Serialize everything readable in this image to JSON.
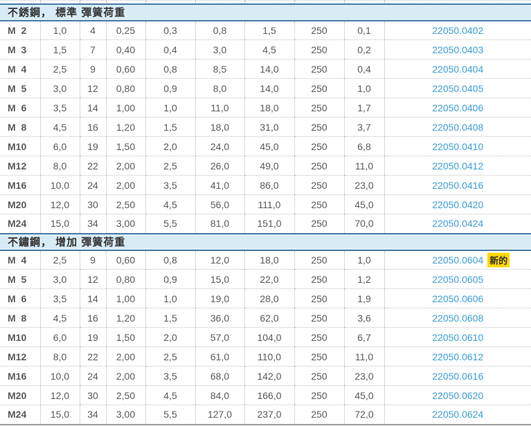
{
  "colors": {
    "section_header_bg": "#d8ecf6",
    "section_border_blue": "#4a7ba6",
    "article_link_blue": "#3d9fd6",
    "new_badge_yellow": "#ffd800",
    "value_text_gray": "#5a5a5a",
    "bottom_rule_gray": "#9a9a9a"
  },
  "table": {
    "sections": [
      {
        "title": "不銹鋼， 標準 彈簧荷重",
        "rows": [
          {
            "size": "M  2",
            "values": [
              "1,0",
              "4",
              "0,25",
              "0,3",
              "0,8",
              "1,5",
              "250",
              "0,1"
            ],
            "article": "22050.0402"
          },
          {
            "size": "M  3",
            "values": [
              "1,5",
              "7",
              "0,40",
              "0,4",
              "3,0",
              "4,5",
              "250",
              "0,2"
            ],
            "article": "22050.0403"
          },
          {
            "size": "M  4",
            "values": [
              "2,5",
              "9",
              "0,60",
              "0,8",
              "8,5",
              "14,0",
              "250",
              "0,4"
            ],
            "article": "22050.0404"
          },
          {
            "size": "M  5",
            "values": [
              "3,0",
              "12",
              "0,80",
              "0,9",
              "8,0",
              "14,0",
              "250",
              "1,0"
            ],
            "article": "22050.0405"
          },
          {
            "size": "M  6",
            "values": [
              "3,5",
              "14",
              "1,00",
              "1,0",
              "11,0",
              "18,0",
              "250",
              "1,7"
            ],
            "article": "22050.0406"
          },
          {
            "size": "M  8",
            "values": [
              "4,5",
              "16",
              "1,20",
              "1,5",
              "18,0",
              "31,0",
              "250",
              "3,7"
            ],
            "article": "22050.0408"
          },
          {
            "size": "M10",
            "values": [
              "6,0",
              "19",
              "1,50",
              "2,0",
              "24,0",
              "45,0",
              "250",
              "6,8"
            ],
            "article": "22050.0410"
          },
          {
            "size": "M12",
            "values": [
              "8,0",
              "22",
              "2,00",
              "2,5",
              "26,0",
              "49,0",
              "250",
              "11,0"
            ],
            "article": "22050.0412"
          },
          {
            "size": "M16",
            "values": [
              "10,0",
              "24",
              "2,00",
              "3,5",
              "41,0",
              "86,0",
              "250",
              "23,0"
            ],
            "article": "22050.0416"
          },
          {
            "size": "M20",
            "values": [
              "12,0",
              "30",
              "2,50",
              "4,5",
              "56,0",
              "111,0",
              "250",
              "45,0"
            ],
            "article": "22050.0420"
          },
          {
            "size": "M24",
            "values": [
              "15,0",
              "34",
              "3,00",
              "5,5",
              "81,0",
              "151,0",
              "250",
              "70,0"
            ],
            "article": "22050.0424"
          }
        ]
      },
      {
        "title": "不鏽鋼， 增加 彈簧荷重",
        "rows": [
          {
            "size": "M  4",
            "values": [
              "2,5",
              "9",
              "0,60",
              "0,8",
              "12,0",
              "18,0",
              "250",
              "1,0"
            ],
            "article": "22050.0604",
            "badge": "新的"
          },
          {
            "size": "M  5",
            "values": [
              "3,0",
              "12",
              "0,80",
              "0,9",
              "15,0",
              "22,0",
              "250",
              "1,2"
            ],
            "article": "22050.0605"
          },
          {
            "size": "M  6",
            "values": [
              "3,5",
              "14",
              "1,00",
              "1,0",
              "19,0",
              "28,0",
              "250",
              "1,9"
            ],
            "article": "22050.0606"
          },
          {
            "size": "M  8",
            "values": [
              "4,5",
              "16",
              "1,20",
              "1,5",
              "36,0",
              "62,0",
              "250",
              "3,6"
            ],
            "article": "22050.0608"
          },
          {
            "size": "M10",
            "values": [
              "6,0",
              "19",
              "1,50",
              "2,0",
              "57,0",
              "104,0",
              "250",
              "6,7"
            ],
            "article": "22050.0610"
          },
          {
            "size": "M12",
            "values": [
              "8,0",
              "22",
              "2,00",
              "2,5",
              "61,0",
              "110,0",
              "250",
              "11,0"
            ],
            "article": "22050.0612"
          },
          {
            "size": "M16",
            "values": [
              "10,0",
              "24",
              "2,00",
              "3,5",
              "68,0",
              "142,0",
              "250",
              "23,0"
            ],
            "article": "22050.0616"
          },
          {
            "size": "M20",
            "values": [
              "12,0",
              "30",
              "2,50",
              "4,5",
              "84,0",
              "166,0",
              "250",
              "45,0"
            ],
            "article": "22050.0620"
          },
          {
            "size": "M24",
            "values": [
              "15,0",
              "34",
              "3,00",
              "5,5",
              "127,0",
              "237,0",
              "250",
              "72,0"
            ],
            "article": "22050.0624"
          }
        ]
      }
    ]
  }
}
